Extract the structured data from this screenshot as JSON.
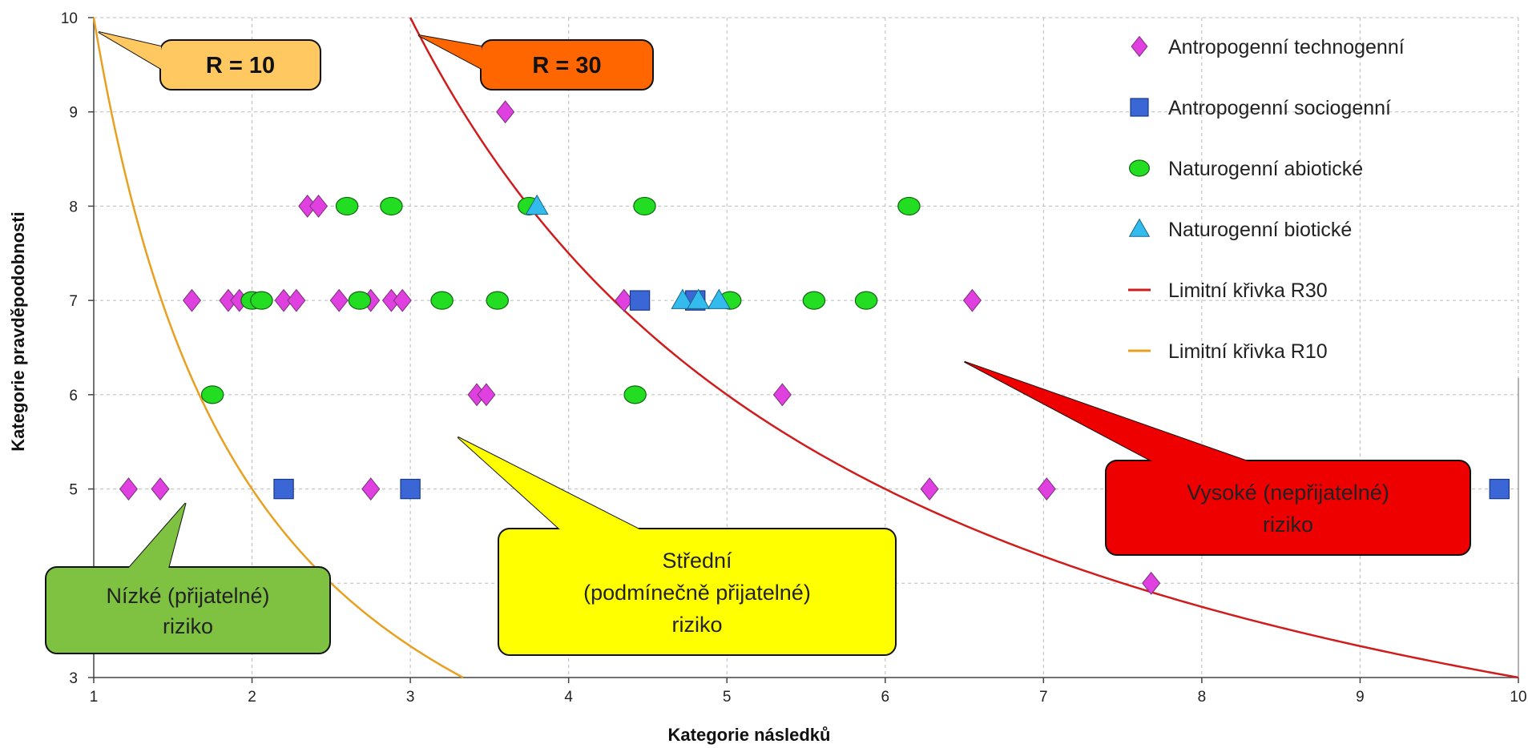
{
  "chart_data": {
    "type": "scatter",
    "xlabel": "Kategorie následků",
    "ylabel": "Kategorie pravděpodobnosti",
    "xlim": [
      1,
      10
    ],
    "ylim": [
      3,
      10
    ],
    "x_ticks": [
      "1",
      "2",
      "3",
      "4",
      "5",
      "6",
      "7",
      "8",
      "9",
      "10"
    ],
    "y_ticks": [
      "3",
      "5",
      "6",
      "7",
      "8",
      "9",
      "10"
    ],
    "grid": true,
    "legend_position": "top-right",
    "series": [
      {
        "name": "Antropogenní technogenní",
        "marker": "diamond",
        "color": "#e040e0",
        "points": [
          [
            3.6,
            9
          ],
          [
            2.35,
            8
          ],
          [
            2.42,
            8
          ],
          [
            1.62,
            7
          ],
          [
            1.85,
            7
          ],
          [
            1.92,
            7
          ],
          [
            2.2,
            7
          ],
          [
            2.28,
            7
          ],
          [
            2.55,
            7
          ],
          [
            2.75,
            7
          ],
          [
            2.88,
            7
          ],
          [
            2.95,
            7
          ],
          [
            4.35,
            7
          ],
          [
            6.55,
            7
          ],
          [
            3.42,
            6
          ],
          [
            3.48,
            6
          ],
          [
            5.35,
            6
          ],
          [
            1.22,
            5
          ],
          [
            1.42,
            5
          ],
          [
            2.75,
            5
          ],
          [
            6.28,
            5
          ],
          [
            7.02,
            5
          ],
          [
            7.68,
            4
          ]
        ]
      },
      {
        "name": "Antropogenní sociogenní",
        "marker": "square",
        "color": "#3a66d6",
        "points": [
          [
            4.45,
            7
          ],
          [
            4.8,
            7
          ],
          [
            2.2,
            5
          ],
          [
            3.0,
            5
          ],
          [
            9.88,
            5
          ]
        ]
      },
      {
        "name": "Naturogenní abiotické",
        "marker": "circle",
        "color": "#22dd22",
        "points": [
          [
            2.6,
            8
          ],
          [
            2.88,
            8
          ],
          [
            3.75,
            8
          ],
          [
            4.48,
            8
          ],
          [
            6.15,
            8
          ],
          [
            2.0,
            7
          ],
          [
            2.06,
            7
          ],
          [
            2.68,
            7
          ],
          [
            3.2,
            7
          ],
          [
            3.55,
            7
          ],
          [
            5.02,
            7
          ],
          [
            5.55,
            7
          ],
          [
            5.88,
            7
          ],
          [
            1.75,
            6
          ],
          [
            4.42,
            6
          ]
        ]
      },
      {
        "name": "Naturogenní biotické",
        "marker": "triangle",
        "color": "#33bbee",
        "points": [
          [
            3.8,
            8
          ],
          [
            4.72,
            7
          ],
          [
            4.82,
            7
          ],
          [
            4.95,
            7
          ]
        ]
      },
      {
        "name": "Limitní křivka R30",
        "type": "curve",
        "color": "#d01c1c",
        "constant": 30
      },
      {
        "name": "Limitní křivka R10",
        "type": "curve",
        "color": "#e8a020",
        "constant": 10
      }
    ],
    "annotations": {
      "r10_label": "R = 10",
      "r30_label": "R = 30",
      "low_risk": [
        "Nízké (přijatelné)",
        "riziko"
      ],
      "medium_risk": [
        "Střední",
        "(podmínečně přijatelné)",
        "riziko"
      ],
      "high_risk": [
        "Vysoké (nepřijatelné)",
        "riziko"
      ]
    },
    "colors": {
      "r10_box": "#ffc860",
      "r30_box": "#ff6600",
      "low_box": "#7fc241",
      "medium_box": "#ffff00",
      "high_box": "#ee0000"
    }
  }
}
